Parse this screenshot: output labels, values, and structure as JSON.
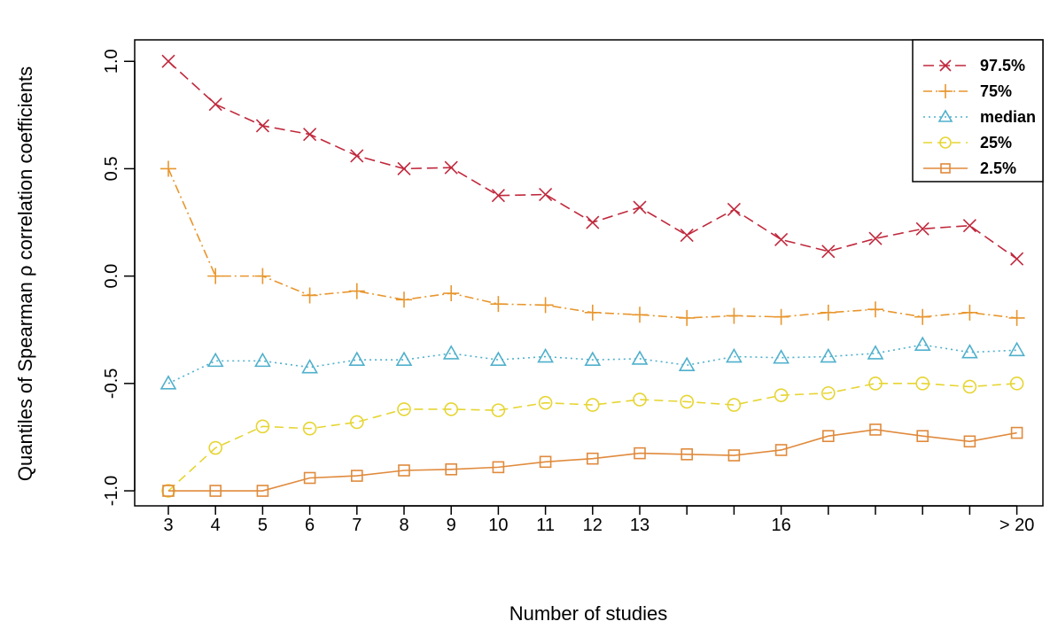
{
  "chart_data": {
    "type": "line",
    "xlabel": "Number of studies",
    "ylabel": "Quantiles of Spearman ρ correlation coefficients",
    "x_positions": [
      3,
      4,
      5,
      6,
      7,
      8,
      9,
      10,
      11,
      12,
      13,
      14,
      15,
      16,
      17,
      18,
      19,
      20,
      21
    ],
    "x_tick_positions": [
      3,
      4,
      5,
      6,
      7,
      8,
      9,
      10,
      11,
      12,
      13,
      16,
      21
    ],
    "x_tick_labels": [
      "3",
      "4",
      "5",
      "6",
      "7",
      "8",
      "9",
      "10",
      "11",
      "12",
      "13",
      "16",
      "> 20"
    ],
    "y_ticks": [
      -1.0,
      -0.5,
      0.0,
      0.5,
      1.0
    ],
    "y_tick_labels": [
      "-1.0",
      "-0.5",
      "0.0",
      "0.5",
      "1.0"
    ],
    "ylim": [
      -1.07,
      1.1
    ],
    "grid": false,
    "legend_position": "top-right",
    "series": [
      {
        "name": "97.5%",
        "color": "#C0283C",
        "dash": "12,6",
        "marker": "x",
        "values": [
          1.0,
          0.8,
          0.7,
          0.66,
          0.56,
          0.5,
          0.505,
          0.375,
          0.38,
          0.25,
          0.32,
          0.19,
          0.31,
          0.17,
          0.115,
          0.175,
          0.22,
          0.235,
          0.08
        ]
      },
      {
        "name": "75%",
        "color": "#E8962E",
        "dash": "10,4,2,4",
        "marker": "plus",
        "values": [
          0.5,
          0.0,
          0.0,
          -0.09,
          -0.07,
          -0.11,
          -0.08,
          -0.13,
          -0.135,
          -0.17,
          -0.18,
          -0.195,
          -0.185,
          -0.19,
          -0.17,
          -0.155,
          -0.19,
          -0.17,
          -0.195
        ]
      },
      {
        "name": "median",
        "color": "#4FB0CC",
        "dash": "2,4",
        "marker": "triangle",
        "values": [
          -0.5,
          -0.395,
          -0.395,
          -0.425,
          -0.39,
          -0.39,
          -0.36,
          -0.39,
          -0.375,
          -0.39,
          -0.385,
          -0.415,
          -0.375,
          -0.38,
          -0.375,
          -0.36,
          -0.32,
          -0.355,
          -0.345
        ]
      },
      {
        "name": "25%",
        "color": "#E6D532",
        "dash": "10,6",
        "marker": "circle",
        "values": [
          -1.0,
          -0.8,
          -0.7,
          -0.71,
          -0.68,
          -0.62,
          -0.62,
          -0.625,
          -0.59,
          -0.6,
          -0.575,
          -0.585,
          -0.6,
          -0.555,
          -0.545,
          -0.5,
          -0.5,
          -0.515,
          -0.5
        ]
      },
      {
        "name": "2.5%",
        "color": "#E08A3C",
        "dash": "",
        "marker": "square",
        "values": [
          -1.0,
          -1.0,
          -1.0,
          -0.94,
          -0.93,
          -0.905,
          -0.9,
          -0.89,
          -0.865,
          -0.85,
          -0.825,
          -0.83,
          -0.835,
          -0.81,
          -0.745,
          -0.715,
          -0.745,
          -0.77,
          -0.73
        ]
      }
    ]
  }
}
